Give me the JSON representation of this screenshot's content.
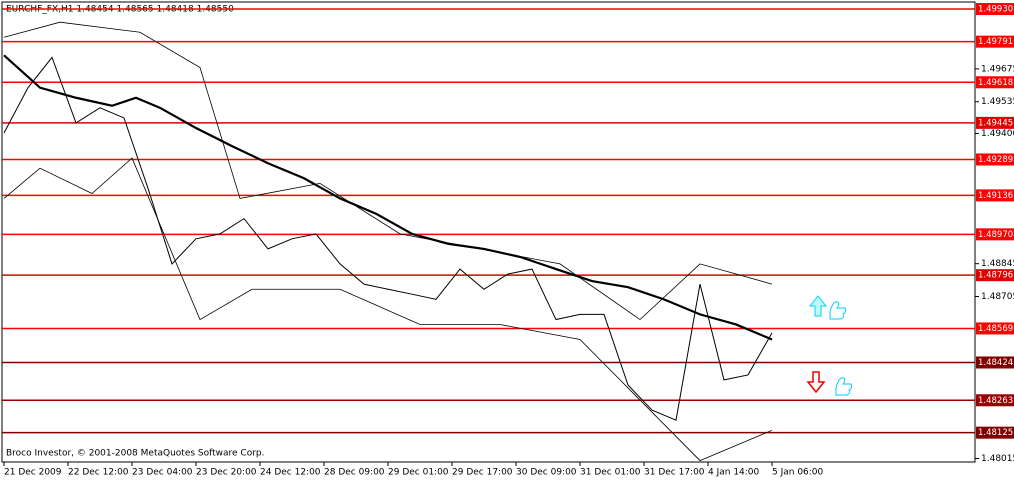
{
  "chart_data": {
    "type": "line",
    "title": "EURCHF_FX,H1  1.48454 1.48565 1.48418 1.48550",
    "watermark": "Broco Investor, © 2001-2008 MetaQuotes Software Corp.",
    "xlim": [
      -0.5,
      242.75
    ],
    "ylim": [
      1.48,
      1.4996
    ],
    "xticks": [
      {
        "value": 0,
        "label": "21 Dec 2009"
      },
      {
        "value": 16,
        "label": "22 Dec 12:00"
      },
      {
        "value": 32,
        "label": "23 Dec 04:00"
      },
      {
        "value": 48,
        "label": "23 Dec 20:00"
      },
      {
        "value": 64,
        "label": "24 Dec 12:00"
      },
      {
        "value": 80,
        "label": "28 Dec 09:00"
      },
      {
        "value": 96,
        "label": "29 Dec 01:00"
      },
      {
        "value": 112,
        "label": "29 Dec 17:00"
      },
      {
        "value": 128,
        "label": "30 Dec 09:00"
      },
      {
        "value": 144,
        "label": "31 Dec 01:00"
      },
      {
        "value": 160,
        "label": "31 Dec 17:00"
      },
      {
        "value": 176,
        "label": "4 Jan 14:00"
      },
      {
        "value": 192,
        "label": "5 Jan 06:00"
      }
    ],
    "yticks": [
      1.49675,
      1.49535,
      {
        "value": 1.494,
        "label": "1.49400"
      },
      1.48845,
      1.48705,
      1.48015
    ],
    "x": [
      0,
      6,
      12,
      18,
      24,
      30,
      36,
      42,
      48,
      54,
      60,
      66,
      72,
      78,
      84,
      90,
      96,
      102,
      108,
      114,
      120,
      126,
      132,
      138,
      144,
      150,
      156,
      162,
      168,
      174,
      180,
      186,
      192
    ],
    "series": [
      {
        "name": "Close",
        "color": "#000000",
        "width": 1,
        "values": [
          1.49402,
          1.49595,
          1.49724,
          1.49445,
          1.49509,
          1.49466,
          1.49166,
          1.48844,
          1.48951,
          1.48972,
          1.49037,
          1.48908,
          1.48951,
          1.48972,
          1.48844,
          1.48758,
          1.48736,
          1.48715,
          1.48693,
          1.48822,
          1.48736,
          1.48801,
          1.48822,
          1.48607,
          1.48629,
          1.48629,
          1.48328,
          1.48221,
          1.48178,
          1.48758,
          1.4835,
          1.48371,
          1.4855
        ]
      },
      {
        "name": "MA",
        "color": "#000000",
        "width": 2.2,
        "x": [
          0,
          9,
          18,
          27,
          33,
          39,
          48,
          57,
          66,
          75,
          84,
          93,
          102,
          111,
          120,
          129,
          138,
          147,
          156,
          165,
          174,
          183,
          192
        ],
        "values": [
          1.49733,
          1.49595,
          1.49552,
          1.49518,
          1.49552,
          1.49509,
          1.49423,
          1.49346,
          1.49273,
          1.49209,
          1.49123,
          1.49058,
          1.48972,
          1.4893,
          1.48908,
          1.48874,
          1.48822,
          1.48771,
          1.48745,
          1.48693,
          1.48629,
          1.48586,
          1.48522
        ]
      },
      {
        "name": "Upper band",
        "color": "#000000",
        "width": 0.8,
        "x": [
          0,
          14,
          34,
          49,
          59,
          79,
          99,
          119,
          139,
          159,
          174,
          192
        ],
        "values": [
          1.4981,
          1.49874,
          1.49831,
          1.49681,
          1.49123,
          1.49187,
          1.48972,
          1.48908,
          1.48844,
          1.48607,
          1.48844,
          1.48758
        ]
      },
      {
        "name": "Lower band",
        "color": "#000000",
        "width": 0.8,
        "x": [
          0,
          9,
          22,
          32,
          49,
          62,
          84,
          104,
          124,
          144,
          159,
          174,
          192
        ],
        "values": [
          1.49123,
          1.49252,
          1.49144,
          1.49295,
          1.48607,
          1.48736,
          1.48736,
          1.48586,
          1.48586,
          1.48522,
          1.48264,
          1.48006,
          1.48135
        ]
      }
    ],
    "levels": [
      {
        "value": 1.4993,
        "label": "1.49930",
        "color": "#ff0000"
      },
      {
        "value": 1.49791,
        "label": "1.49791",
        "color": "#ff0000"
      },
      {
        "value": 1.49618,
        "label": "1.49618",
        "color": "#ff0000"
      },
      {
        "value": 1.49445,
        "label": "1.49445",
        "color": "#e00000"
      },
      {
        "value": 1.49289,
        "label": "1.49289",
        "color": "#ff0000"
      },
      {
        "value": 1.49136,
        "label": "1.49136",
        "color": "#ff0000"
      },
      {
        "value": 1.4897,
        "label": "1.48970",
        "color": "#ff0000"
      },
      {
        "value": 1.48796,
        "label": "1.48796",
        "color": "#e00000"
      },
      {
        "value": 1.48569,
        "label": "1.48569",
        "color": "#ff0000"
      },
      {
        "value": 1.48424,
        "label": "1.48424",
        "color": "#800000"
      },
      {
        "value": 1.48263,
        "label": "1.48263",
        "color": "#990000"
      },
      {
        "value": 1.48125,
        "label": "1.48125",
        "color": "#800000"
      }
    ]
  }
}
